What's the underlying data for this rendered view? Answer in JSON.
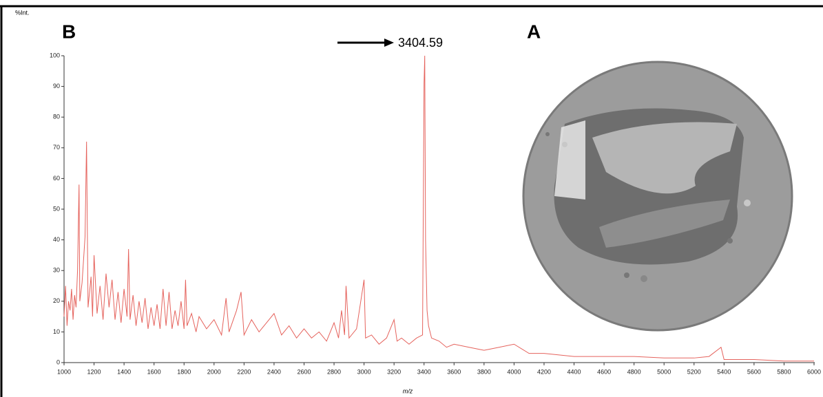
{
  "chart_data": {
    "type": "line",
    "panel_label": "B",
    "image_label": "A",
    "annotation": "3404.59",
    "y_label": "%Int.",
    "x_label": "m/z",
    "color": "#e5625c",
    "x": [
      1000,
      1010,
      1020,
      1030,
      1040,
      1050,
      1060,
      1070,
      1080,
      1090,
      1100,
      1105,
      1120,
      1140,
      1150,
      1160,
      1180,
      1190,
      1200,
      1220,
      1240,
      1260,
      1280,
      1300,
      1320,
      1340,
      1360,
      1380,
      1400,
      1420,
      1430,
      1440,
      1460,
      1480,
      1500,
      1520,
      1540,
      1560,
      1580,
      1600,
      1620,
      1640,
      1660,
      1680,
      1700,
      1720,
      1740,
      1760,
      1780,
      1800,
      1810,
      1820,
      1850,
      1880,
      1900,
      1950,
      2000,
      2050,
      2080,
      2100,
      2150,
      2180,
      2200,
      2250,
      2300,
      2350,
      2400,
      2450,
      2500,
      2550,
      2600,
      2650,
      2700,
      2750,
      2800,
      2830,
      2850,
      2870,
      2880,
      2900,
      2950,
      3000,
      3010,
      3050,
      3100,
      3150,
      3200,
      3220,
      3250,
      3300,
      3350,
      3390,
      3400,
      3404.59,
      3410,
      3420,
      3430,
      3450,
      3500,
      3550,
      3600,
      3700,
      3800,
      3900,
      4000,
      4100,
      4200,
      4400,
      4600,
      4800,
      5000,
      5200,
      5300,
      5380,
      5400,
      5600,
      5800,
      6000
    ],
    "values": [
      15,
      25,
      12,
      20,
      17,
      24,
      14,
      22,
      18,
      30,
      58,
      20,
      26,
      41,
      72,
      18,
      28,
      15,
      35,
      16,
      25,
      14,
      29,
      18,
      27,
      14,
      23,
      13,
      24,
      15,
      37,
      14,
      22,
      12,
      20,
      13,
      21,
      11,
      18,
      12,
      19,
      11,
      24,
      12,
      23,
      11,
      17,
      12,
      20,
      11,
      27,
      12,
      16,
      10,
      15,
      11,
      14,
      9,
      21,
      10,
      17,
      23,
      9,
      14,
      10,
      13,
      16,
      9,
      12,
      8,
      11,
      8,
      10,
      7,
      13,
      8,
      17,
      9,
      25,
      8,
      11,
      27,
      8,
      9,
      6,
      8,
      14,
      7,
      8,
      6,
      8,
      9,
      91,
      100,
      40,
      17,
      12,
      8,
      7,
      5,
      6,
      5,
      4,
      5,
      6,
      3,
      3,
      2,
      2,
      2,
      1.5,
      1.5,
      2,
      5,
      1,
      1,
      0.5,
      0.5
    ],
    "xlim": [
      1000,
      6000
    ],
    "xticks": [
      1000,
      1200,
      1400,
      1600,
      1800,
      2000,
      2200,
      2400,
      2600,
      2800,
      3000,
      3200,
      3400,
      3600,
      3800,
      4000,
      4200,
      4400,
      4600,
      4800,
      5000,
      5200,
      5400,
      5600,
      5800,
      6000
    ],
    "ylim": [
      0,
      100
    ],
    "yticks": [
      0,
      10,
      20,
      30,
      40,
      50,
      60,
      70,
      80,
      90,
      100
    ]
  }
}
